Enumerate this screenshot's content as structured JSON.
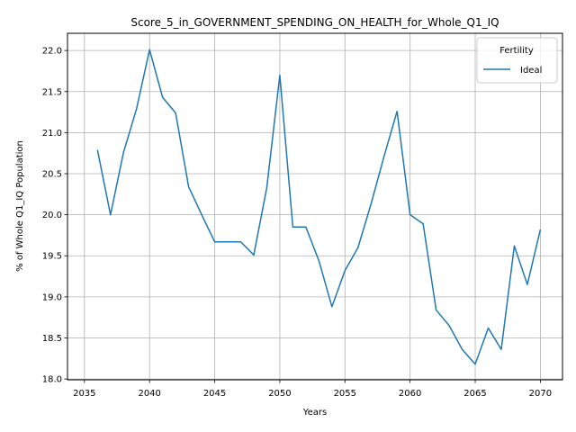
{
  "chart_data": {
    "type": "line",
    "title": "Score_5_in_GOVERNMENT_SPENDING_ON_HEALTH_for_Whole_Q1_IQ",
    "xlabel": "Years",
    "ylabel": "% of Whole Q1_IQ Population",
    "xlim": [
      2033.7,
      2071.7
    ],
    "ylim": [
      17.99,
      22.21
    ],
    "xticks": [
      2035,
      2040,
      2045,
      2050,
      2055,
      2060,
      2065,
      2070
    ],
    "yticks": [
      18.0,
      18.5,
      19.0,
      19.5,
      20.0,
      20.5,
      21.0,
      21.5,
      22.0
    ],
    "ytick_labels": [
      "18.0",
      "18.5",
      "19.0",
      "19.5",
      "20.0",
      "20.5",
      "21.0",
      "21.5",
      "22.0"
    ],
    "grid": true,
    "legend": {
      "title": "Fertility",
      "position": "top-right"
    },
    "series": [
      {
        "name": "Ideal",
        "color": "#1f77b4",
        "x": [
          2036,
          2037,
          2038,
          2039,
          2040,
          2041,
          2042,
          2043,
          2044,
          2045,
          2046,
          2047,
          2048,
          2049,
          2050,
          2051,
          2052,
          2053,
          2054,
          2055,
          2056,
          2057,
          2058,
          2059,
          2060,
          2061,
          2062,
          2063,
          2064,
          2065,
          2066,
          2067,
          2068,
          2069,
          2070
        ],
        "y": [
          20.79,
          20.0,
          20.76,
          21.29,
          22.01,
          21.43,
          21.24,
          20.34,
          20.0,
          19.67,
          19.67,
          19.67,
          19.51,
          20.33,
          21.7,
          19.85,
          19.85,
          19.44,
          18.88,
          19.32,
          19.6,
          20.13,
          20.71,
          21.26,
          20.0,
          19.89,
          18.84,
          18.65,
          18.36,
          18.18,
          18.62,
          18.36,
          19.62,
          19.15,
          19.82
        ]
      }
    ]
  }
}
